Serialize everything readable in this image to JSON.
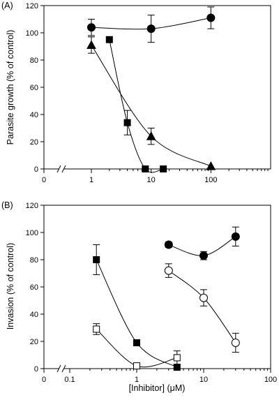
{
  "chart_data": [
    {
      "type": "line",
      "panel_label": "(A)",
      "ylabel": "Parasite growth (% of control)",
      "xlabel": "",
      "x_scale": "log",
      "x_axis_break": true,
      "ylim": [
        0,
        120
      ],
      "xlim": [
        1,
        100
      ],
      "x_tick_labels": [
        "0",
        "1",
        "10",
        "100"
      ],
      "y_tick_labels": [
        "0",
        "20",
        "40",
        "60",
        "80",
        "100",
        "120"
      ],
      "grid": false,
      "legend": "none",
      "series": [
        {
          "marker": "filled-circle",
          "points": [
            {
              "x": 1,
              "y": 104,
              "err": 6
            },
            {
              "x": 10,
              "y": 103,
              "err": 10
            },
            {
              "x": 100,
              "y": 111,
              "err": 8
            }
          ]
        },
        {
          "marker": "filled-square",
          "points": [
            {
              "x": 2,
              "y": 95,
              "err": 0
            },
            {
              "x": 4,
              "y": 34,
              "err": 9
            },
            {
              "x": 8,
              "y": 0,
              "err": 0
            },
            {
              "x": 16,
              "y": 0,
              "err": 0
            }
          ]
        },
        {
          "marker": "filled-triangle",
          "points": [
            {
              "x": 1,
              "y": 91,
              "err": 6
            },
            {
              "x": 10,
              "y": 24,
              "err": 6
            },
            {
              "x": 100,
              "y": 2,
              "err": 0
            }
          ]
        }
      ]
    },
    {
      "type": "line",
      "panel_label": "(B)",
      "ylabel": "Invasion (% of control)",
      "xlabel": "[Inhibitor] (μM)",
      "x_scale": "log",
      "x_axis_break": true,
      "ylim": [
        0,
        120
      ],
      "xlim": [
        0.1,
        100
      ],
      "x_tick_labels": [
        "0",
        "0.1",
        "1",
        "10",
        "100"
      ],
      "y_tick_labels": [
        "0",
        "20",
        "40",
        "60",
        "80",
        "100",
        "120"
      ],
      "grid": false,
      "legend": "none",
      "series": [
        {
          "marker": "filled-circle",
          "points": [
            {
              "x": 3,
              "y": 91,
              "err": 2
            },
            {
              "x": 10,
              "y": 83,
              "err": 3
            },
            {
              "x": 30,
              "y": 97,
              "err": 7
            }
          ]
        },
        {
          "marker": "open-circle",
          "points": [
            {
              "x": 3,
              "y": 72,
              "err": 5
            },
            {
              "x": 10,
              "y": 52,
              "err": 6
            },
            {
              "x": 30,
              "y": 19,
              "err": 7
            }
          ]
        },
        {
          "marker": "filled-square",
          "points": [
            {
              "x": 0.25,
              "y": 80,
              "err": 11
            },
            {
              "x": 1,
              "y": 19,
              "err": 2
            },
            {
              "x": 4,
              "y": 1,
              "err": 0
            }
          ]
        },
        {
          "marker": "open-square",
          "points": [
            {
              "x": 0.25,
              "y": 29,
              "err": 4
            },
            {
              "x": 1,
              "y": 2,
              "err": 0
            },
            {
              "x": 4,
              "y": 8,
              "err": 5
            }
          ]
        }
      ]
    }
  ]
}
